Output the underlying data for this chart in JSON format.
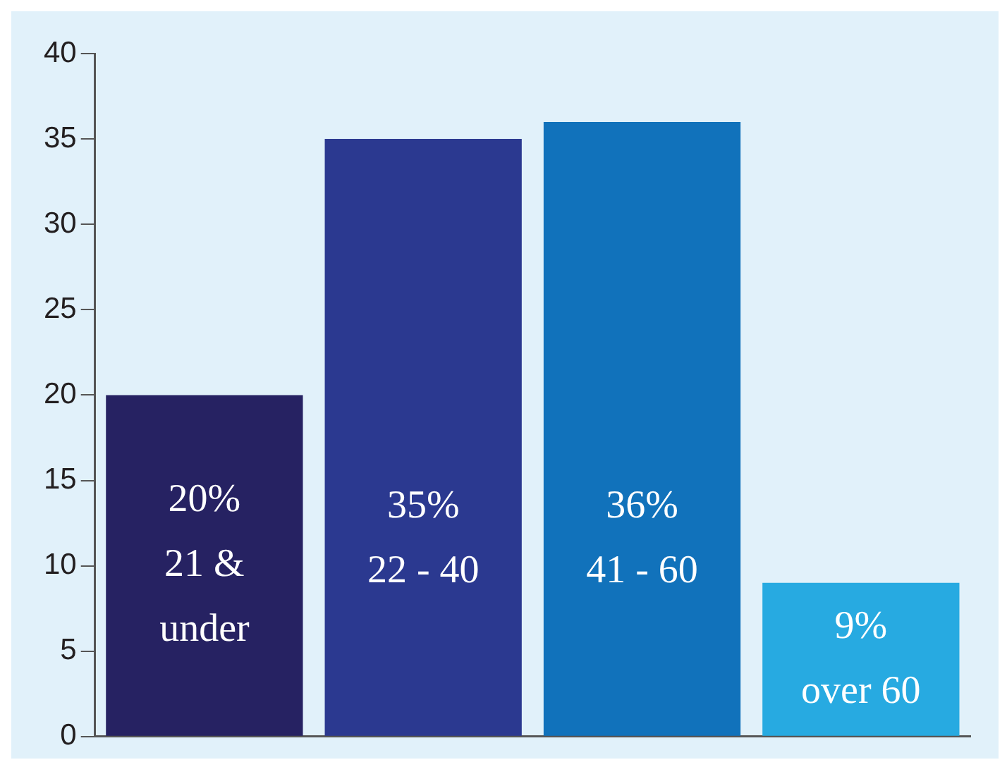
{
  "chart_data": {
    "type": "bar",
    "categories": [
      "21 & under",
      "22 - 40",
      "41 - 60",
      "over 60"
    ],
    "values": [
      20,
      35,
      36,
      9
    ],
    "colors": [
      "#262262",
      "#2b3990",
      "#1172bb",
      "#27aae1"
    ],
    "value_labels": [
      "20%",
      "35%",
      "36%",
      "9%"
    ],
    "ylim": [
      0,
      40
    ],
    "yticks": [
      0,
      5,
      10,
      15,
      20,
      25,
      30,
      35,
      40
    ],
    "grid": false,
    "legend": false,
    "tick_labels": "y"
  }
}
